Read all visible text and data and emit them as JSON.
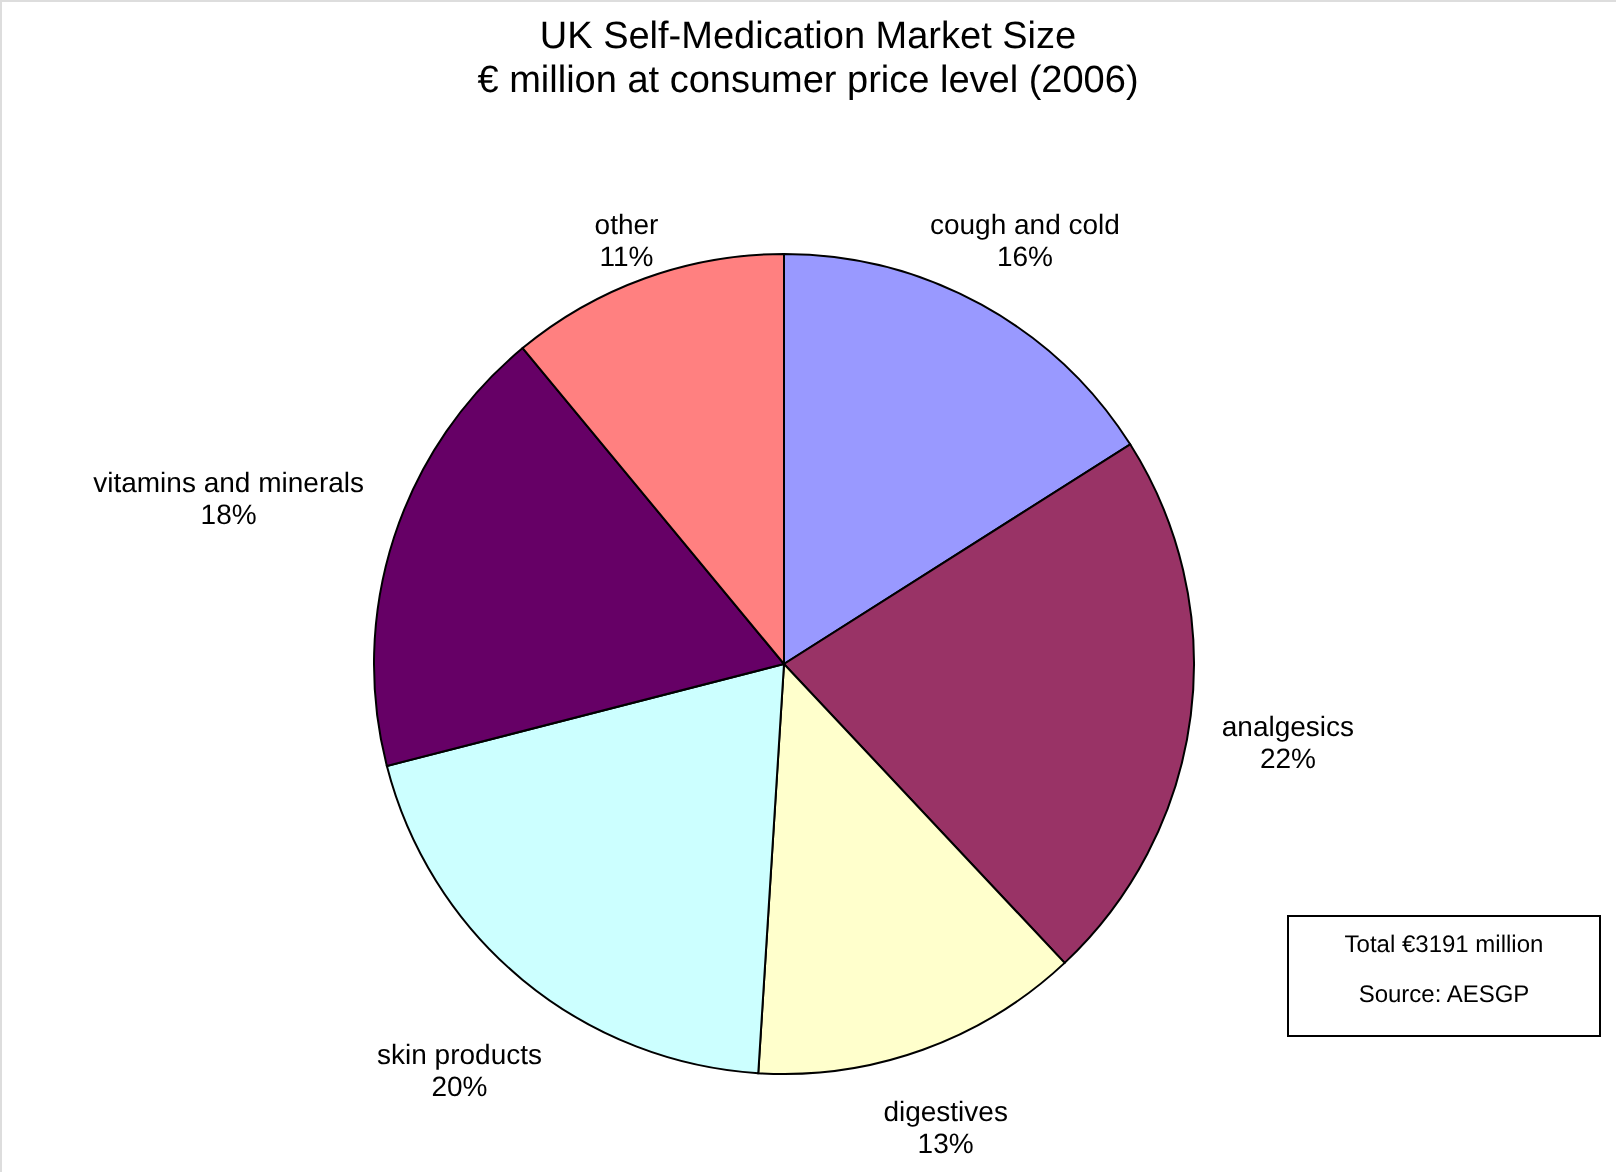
{
  "chart_data": {
    "type": "pie",
    "title": "UK Self-Medication Market Size",
    "subtitle": "€ million at consumer price level (2006)",
    "categories": [
      "cough and cold",
      "analgesics",
      "digestives",
      "skin products",
      "vitamins and minerals",
      "other"
    ],
    "values": [
      16,
      22,
      13,
      20,
      18,
      11
    ],
    "value_labels": [
      "16%",
      "22%",
      "13%",
      "20%",
      "18%",
      "11%"
    ],
    "colors": [
      "#9999ff",
      "#993366",
      "#ffffcc",
      "#ccffff",
      "#660066",
      "#ff8080"
    ],
    "legend": false,
    "annotations": [
      "Total €3191 million",
      "Source: AESGP"
    ]
  }
}
